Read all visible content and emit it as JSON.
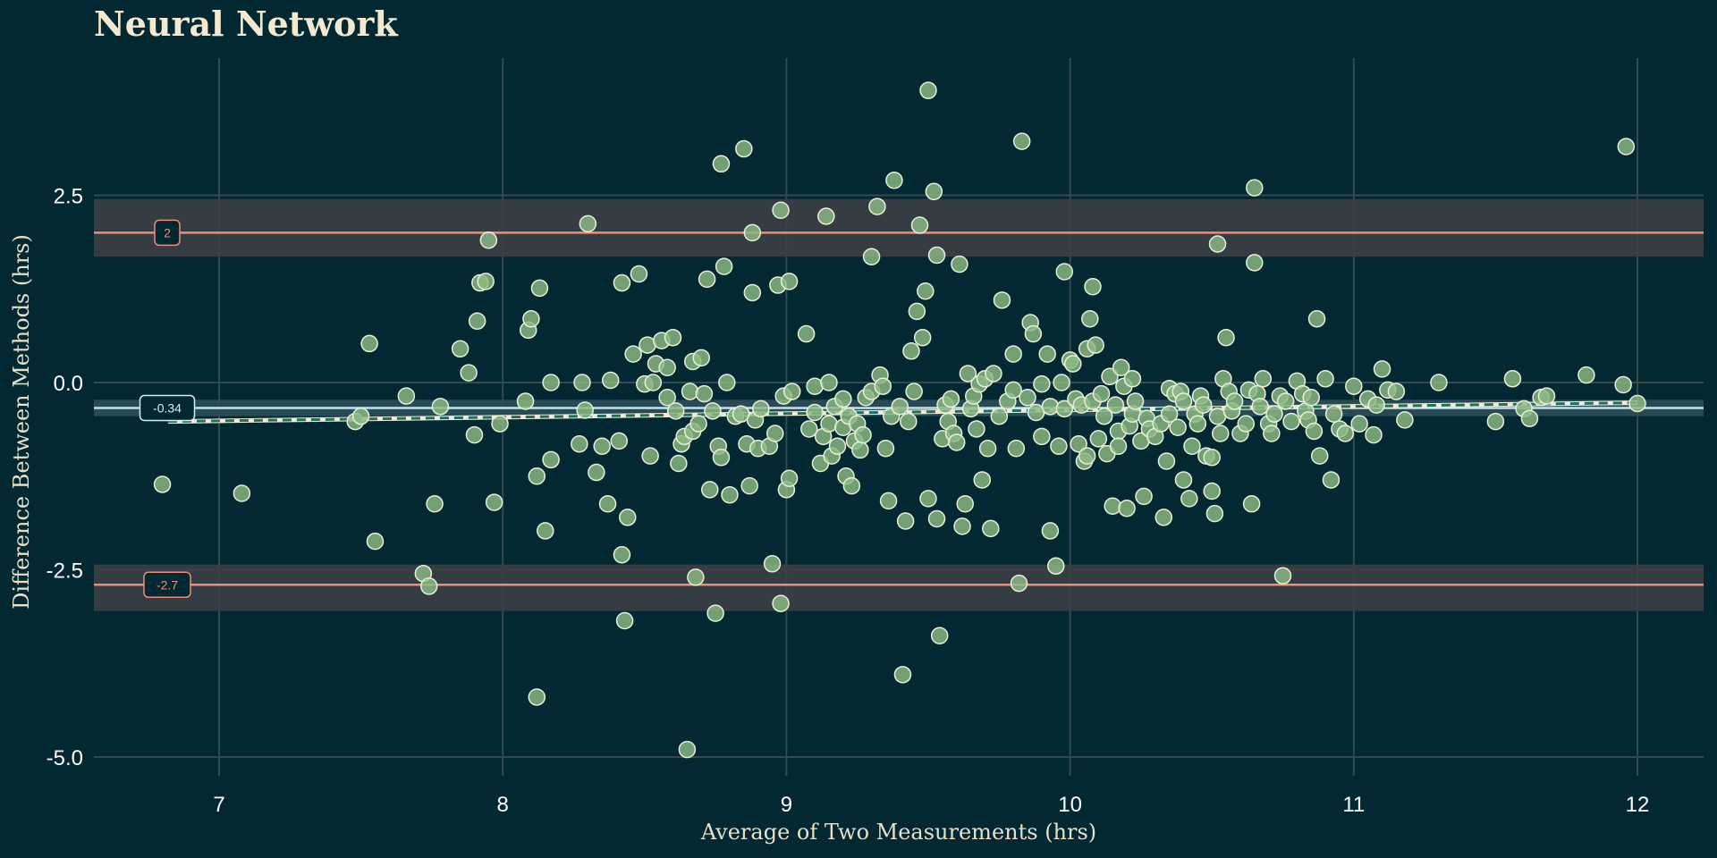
{
  "chart_data": {
    "type": "scatter",
    "title": "Neural Network",
    "xlabel": "Average of Two Measurements (hrs)",
    "ylabel": "Difference Between Methods (hrs)",
    "xlim": [
      6.55,
      12.25
    ],
    "ylim": [
      -5.25,
      4.0
    ],
    "x_ticks": [
      7,
      8,
      9,
      10,
      11,
      12
    ],
    "x_tick_labels": [
      "7",
      "8",
      "9",
      "10",
      "11",
      "12"
    ],
    "y_ticks": [
      -5.0,
      -2.5,
      0.0,
      2.5
    ],
    "y_tick_labels": [
      "-5.0",
      "-2.5",
      "0.0",
      "2.5"
    ],
    "grid": true,
    "bias": {
      "value": -0.34,
      "label": "-0.34",
      "ci": [
        -0.45,
        -0.23
      ]
    },
    "upper_loa": {
      "value": 2.0,
      "label": "2",
      "ci": [
        1.68,
        2.45
      ]
    },
    "lower_loa": {
      "value": -2.7,
      "label": "-2.7",
      "ci": [
        -3.05,
        -2.43
      ]
    },
    "trend_line": {
      "x": [
        6.82,
        12.0
      ],
      "y": [
        -0.52,
        -0.27
      ]
    },
    "colors": {
      "background": "#022831",
      "grid": "#334a4e",
      "point_fill": "#8cb985",
      "point_stroke": "#e7efd9",
      "loa_line": "#f08a79",
      "loa_band": "#3b3f45",
      "bias_line": "#bfe3ec",
      "bias_band": "#2b4e5a",
      "trend_line": "#1f6f5c"
    },
    "points": [
      [
        6.8,
        -1.36
      ],
      [
        7.08,
        -1.48
      ],
      [
        7.48,
        -0.52
      ],
      [
        7.5,
        -0.45
      ],
      [
        7.53,
        0.52
      ],
      [
        7.55,
        -2.12
      ],
      [
        7.66,
        -0.18
      ],
      [
        7.72,
        -2.55
      ],
      [
        7.74,
        -2.72
      ],
      [
        7.76,
        -1.62
      ],
      [
        7.78,
        -0.32
      ],
      [
        7.85,
        0.45
      ],
      [
        7.88,
        0.13
      ],
      [
        7.9,
        -0.7
      ],
      [
        7.91,
        0.82
      ],
      [
        7.92,
        1.33
      ],
      [
        7.94,
        1.35
      ],
      [
        7.95,
        1.9
      ],
      [
        7.97,
        -1.6
      ],
      [
        7.99,
        -0.55
      ],
      [
        8.08,
        -0.25
      ],
      [
        8.09,
        0.7
      ],
      [
        8.1,
        0.85
      ],
      [
        8.12,
        -1.25
      ],
      [
        8.13,
        1.26
      ],
      [
        8.12,
        -4.2
      ],
      [
        8.15,
        -1.98
      ],
      [
        8.17,
        0.0
      ],
      [
        8.17,
        -1.03
      ],
      [
        8.27,
        -0.82
      ],
      [
        8.28,
        0.0
      ],
      [
        8.29,
        -0.37
      ],
      [
        8.3,
        2.12
      ],
      [
        8.33,
        -1.2
      ],
      [
        8.35,
        -0.85
      ],
      [
        8.37,
        -1.62
      ],
      [
        8.38,
        0.03
      ],
      [
        8.41,
        -0.78
      ],
      [
        8.42,
        -2.3
      ],
      [
        8.42,
        1.33
      ],
      [
        8.43,
        -3.18
      ],
      [
        8.44,
        -1.8
      ],
      [
        8.46,
        0.38
      ],
      [
        8.48,
        1.45
      ],
      [
        8.5,
        -0.02
      ],
      [
        8.51,
        0.5
      ],
      [
        8.52,
        -0.98
      ],
      [
        8.53,
        0.0
      ],
      [
        8.54,
        0.25
      ],
      [
        8.56,
        0.56
      ],
      [
        8.58,
        0.2
      ],
      [
        8.58,
        -0.2
      ],
      [
        8.6,
        0.6
      ],
      [
        8.61,
        -0.38
      ],
      [
        8.62,
        -1.08
      ],
      [
        8.63,
        -0.82
      ],
      [
        8.64,
        -0.72
      ],
      [
        8.65,
        -4.9
      ],
      [
        8.66,
        -0.12
      ],
      [
        8.67,
        -0.65
      ],
      [
        8.67,
        0.28
      ],
      [
        8.68,
        -2.6
      ],
      [
        8.69,
        -0.55
      ],
      [
        8.7,
        0.33
      ],
      [
        8.71,
        -0.15
      ],
      [
        8.72,
        1.38
      ],
      [
        8.73,
        -1.43
      ],
      [
        8.74,
        -0.38
      ],
      [
        8.75,
        -3.08
      ],
      [
        8.76,
        -0.85
      ],
      [
        8.77,
        2.92
      ],
      [
        8.77,
        -1.0
      ],
      [
        8.78,
        1.55
      ],
      [
        8.79,
        0.0
      ],
      [
        8.8,
        -1.5
      ],
      [
        8.82,
        -0.45
      ],
      [
        8.84,
        -0.42
      ],
      [
        8.85,
        3.12
      ],
      [
        8.86,
        -0.82
      ],
      [
        8.87,
        -1.38
      ],
      [
        8.88,
        2.0
      ],
      [
        8.88,
        1.2
      ],
      [
        8.89,
        -0.5
      ],
      [
        8.9,
        -0.88
      ],
      [
        8.91,
        -0.35
      ],
      [
        8.94,
        -0.85
      ],
      [
        8.95,
        -2.42
      ],
      [
        8.96,
        -0.68
      ],
      [
        8.97,
        1.3
      ],
      [
        8.98,
        2.3
      ],
      [
        8.98,
        -2.95
      ],
      [
        8.99,
        -0.18
      ],
      [
        9.0,
        -1.43
      ],
      [
        9.01,
        1.35
      ],
      [
        9.01,
        -1.28
      ],
      [
        9.02,
        -0.12
      ],
      [
        9.07,
        0.65
      ],
      [
        9.08,
        -0.62
      ],
      [
        9.1,
        -0.4
      ],
      [
        9.1,
        -0.05
      ],
      [
        9.12,
        -1.08
      ],
      [
        9.13,
        -0.72
      ],
      [
        9.14,
        2.22
      ],
      [
        9.15,
        -0.55
      ],
      [
        9.15,
        0.0
      ],
      [
        9.16,
        -0.98
      ],
      [
        9.17,
        -0.32
      ],
      [
        9.18,
        -0.85
      ],
      [
        9.2,
        -0.6
      ],
      [
        9.2,
        -0.22
      ],
      [
        9.21,
        -1.25
      ],
      [
        9.22,
        -0.45
      ],
      [
        9.23,
        -1.38
      ],
      [
        9.24,
        -0.78
      ],
      [
        9.25,
        -0.55
      ],
      [
        9.26,
        -0.9
      ],
      [
        9.27,
        -0.7
      ],
      [
        9.28,
        -0.2
      ],
      [
        9.3,
        -0.12
      ],
      [
        9.3,
        1.68
      ],
      [
        9.32,
        2.35
      ],
      [
        9.33,
        0.1
      ],
      [
        9.34,
        -0.05
      ],
      [
        9.35,
        -0.88
      ],
      [
        9.36,
        -1.58
      ],
      [
        9.37,
        -0.45
      ],
      [
        9.38,
        2.7
      ],
      [
        9.4,
        -0.32
      ],
      [
        9.41,
        -3.9
      ],
      [
        9.42,
        -1.85
      ],
      [
        9.43,
        -0.52
      ],
      [
        9.44,
        0.42
      ],
      [
        9.45,
        -0.12
      ],
      [
        9.46,
        0.95
      ],
      [
        9.47,
        2.1
      ],
      [
        9.48,
        0.6
      ],
      [
        9.49,
        1.22
      ],
      [
        9.5,
        -1.55
      ],
      [
        9.5,
        3.9
      ],
      [
        9.52,
        2.55
      ],
      [
        9.53,
        -1.82
      ],
      [
        9.53,
        1.7
      ],
      [
        9.54,
        -3.38
      ],
      [
        9.55,
        -0.75
      ],
      [
        9.56,
        -0.3
      ],
      [
        9.57,
        -0.52
      ],
      [
        9.58,
        -0.22
      ],
      [
        9.59,
        -0.68
      ],
      [
        9.6,
        -0.8
      ],
      [
        9.61,
        1.58
      ],
      [
        9.62,
        -1.92
      ],
      [
        9.63,
        -1.62
      ],
      [
        9.64,
        0.12
      ],
      [
        9.65,
        -0.35
      ],
      [
        9.66,
        -0.18
      ],
      [
        9.67,
        -0.62
      ],
      [
        9.68,
        -0.02
      ],
      [
        9.69,
        -1.3
      ],
      [
        9.7,
        0.05
      ],
      [
        9.71,
        -0.88
      ],
      [
        9.72,
        -1.95
      ],
      [
        9.73,
        0.12
      ],
      [
        9.75,
        -0.45
      ],
      [
        9.76,
        1.1
      ],
      [
        9.78,
        -0.25
      ],
      [
        9.8,
        0.38
      ],
      [
        9.8,
        -0.1
      ],
      [
        9.81,
        -0.88
      ],
      [
        9.82,
        -2.68
      ],
      [
        9.83,
        3.22
      ],
      [
        9.85,
        -0.2
      ],
      [
        9.86,
        0.8
      ],
      [
        9.87,
        0.65
      ],
      [
        9.88,
        -0.4
      ],
      [
        9.9,
        -0.72
      ],
      [
        9.9,
        -0.02
      ],
      [
        9.92,
        0.38
      ],
      [
        9.93,
        -0.32
      ],
      [
        9.93,
        -1.98
      ],
      [
        9.95,
        -2.45
      ],
      [
        9.96,
        -0.85
      ],
      [
        9.97,
        0.0
      ],
      [
        9.98,
        -0.35
      ],
      [
        9.98,
        1.48
      ],
      [
        10.0,
        0.3
      ],
      [
        10.01,
        0.25
      ],
      [
        10.02,
        -0.22
      ],
      [
        10.03,
        -0.82
      ],
      [
        10.04,
        -0.3
      ],
      [
        10.05,
        -1.05
      ],
      [
        10.06,
        -0.98
      ],
      [
        10.06,
        0.45
      ],
      [
        10.07,
        0.85
      ],
      [
        10.08,
        -0.25
      ],
      [
        10.08,
        1.28
      ],
      [
        10.09,
        0.5
      ],
      [
        10.1,
        -0.75
      ],
      [
        10.11,
        -0.15
      ],
      [
        10.12,
        -0.45
      ],
      [
        10.13,
        -0.95
      ],
      [
        10.14,
        0.08
      ],
      [
        10.15,
        -1.65
      ],
      [
        10.16,
        -0.3
      ],
      [
        10.17,
        -0.65
      ],
      [
        10.17,
        -0.85
      ],
      [
        10.18,
        0.2
      ],
      [
        10.19,
        -0.05
      ],
      [
        10.2,
        -1.68
      ],
      [
        10.21,
        -0.58
      ],
      [
        10.22,
        -0.42
      ],
      [
        10.22,
        0.05
      ],
      [
        10.23,
        -0.25
      ],
      [
        10.25,
        -0.78
      ],
      [
        10.26,
        -1.52
      ],
      [
        10.27,
        -0.48
      ],
      [
        10.28,
        -0.62
      ],
      [
        10.3,
        -0.72
      ],
      [
        10.32,
        -0.55
      ],
      [
        10.33,
        -1.8
      ],
      [
        10.34,
        -1.05
      ],
      [
        10.35,
        -0.42
      ],
      [
        10.35,
        -0.08
      ],
      [
        10.37,
        -0.15
      ],
      [
        10.38,
        -0.6
      ],
      [
        10.39,
        -0.12
      ],
      [
        10.4,
        -1.3
      ],
      [
        10.4,
        -0.25
      ],
      [
        10.42,
        -1.55
      ],
      [
        10.43,
        -0.85
      ],
      [
        10.44,
        -0.42
      ],
      [
        10.45,
        -0.55
      ],
      [
        10.46,
        -0.18
      ],
      [
        10.47,
        -0.3
      ],
      [
        10.48,
        -0.98
      ],
      [
        10.5,
        -1.0
      ],
      [
        10.5,
        -1.45
      ],
      [
        10.51,
        -1.75
      ],
      [
        10.52,
        -0.45
      ],
      [
        10.52,
        1.85
      ],
      [
        10.53,
        -0.68
      ],
      [
        10.54,
        0.05
      ],
      [
        10.55,
        0.6
      ],
      [
        10.56,
        -0.12
      ],
      [
        10.57,
        -0.38
      ],
      [
        10.58,
        -0.25
      ],
      [
        10.6,
        -0.68
      ],
      [
        10.62,
        -0.55
      ],
      [
        10.63,
        -0.1
      ],
      [
        10.64,
        -1.62
      ],
      [
        10.65,
        2.6
      ],
      [
        10.65,
        1.6
      ],
      [
        10.66,
        -0.15
      ],
      [
        10.67,
        -0.32
      ],
      [
        10.68,
        0.05
      ],
      [
        10.7,
        -0.55
      ],
      [
        10.71,
        -0.68
      ],
      [
        10.72,
        -0.42
      ],
      [
        10.74,
        -0.18
      ],
      [
        10.75,
        -2.58
      ],
      [
        10.76,
        -0.25
      ],
      [
        10.78,
        -0.52
      ],
      [
        10.8,
        0.02
      ],
      [
        10.82,
        -0.15
      ],
      [
        10.83,
        -0.38
      ],
      [
        10.84,
        -0.5
      ],
      [
        10.85,
        -0.2
      ],
      [
        10.86,
        -0.65
      ],
      [
        10.87,
        0.85
      ],
      [
        10.88,
        -0.98
      ],
      [
        10.9,
        0.05
      ],
      [
        10.92,
        -1.3
      ],
      [
        10.93,
        -0.42
      ],
      [
        10.95,
        -0.62
      ],
      [
        10.97,
        -0.68
      ],
      [
        11.0,
        -0.05
      ],
      [
        11.02,
        -0.55
      ],
      [
        11.05,
        -0.22
      ],
      [
        11.07,
        -0.7
      ],
      [
        11.08,
        -0.3
      ],
      [
        11.1,
        0.18
      ],
      [
        11.12,
        -0.1
      ],
      [
        11.15,
        -0.12
      ],
      [
        11.18,
        -0.5
      ],
      [
        11.3,
        0.0
      ],
      [
        11.5,
        -0.52
      ],
      [
        11.56,
        0.05
      ],
      [
        11.6,
        -0.35
      ],
      [
        11.62,
        -0.48
      ],
      [
        11.66,
        -0.2
      ],
      [
        11.68,
        -0.18
      ],
      [
        11.82,
        0.1
      ],
      [
        11.95,
        -0.03
      ],
      [
        12.0,
        -0.28
      ],
      [
        11.96,
        3.15
      ]
    ]
  }
}
